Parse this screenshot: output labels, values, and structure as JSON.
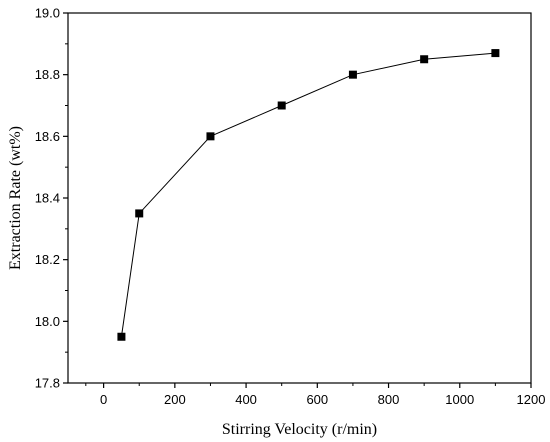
{
  "chart_data": {
    "type": "line",
    "xlabel": "Stirring Velocity (r/min)",
    "ylabel": "Extraction Rate (wt%)",
    "xlim": [
      -100,
      1200
    ],
    "ylim": [
      17.8,
      19.0
    ],
    "xticks": [
      0,
      200,
      400,
      600,
      800,
      1000,
      1200
    ],
    "yticks": [
      17.8,
      18.0,
      18.2,
      18.4,
      18.6,
      18.8,
      19.0
    ],
    "x_tick_labels": [
      "0",
      "200",
      "400",
      "600",
      "800",
      "1000",
      "1200"
    ],
    "y_tick_labels": [
      "17.8",
      "18.0",
      "18.2",
      "18.4",
      "18.6",
      "18.8",
      "19.0"
    ],
    "grid": false,
    "legend": "none",
    "marker": "square",
    "series": [
      {
        "x": [
          50,
          100,
          300,
          500,
          700,
          900,
          1100
        ],
        "y": [
          17.95,
          18.35,
          18.6,
          18.7,
          18.8,
          18.85,
          18.87
        ],
        "color": "#000000"
      }
    ]
  }
}
